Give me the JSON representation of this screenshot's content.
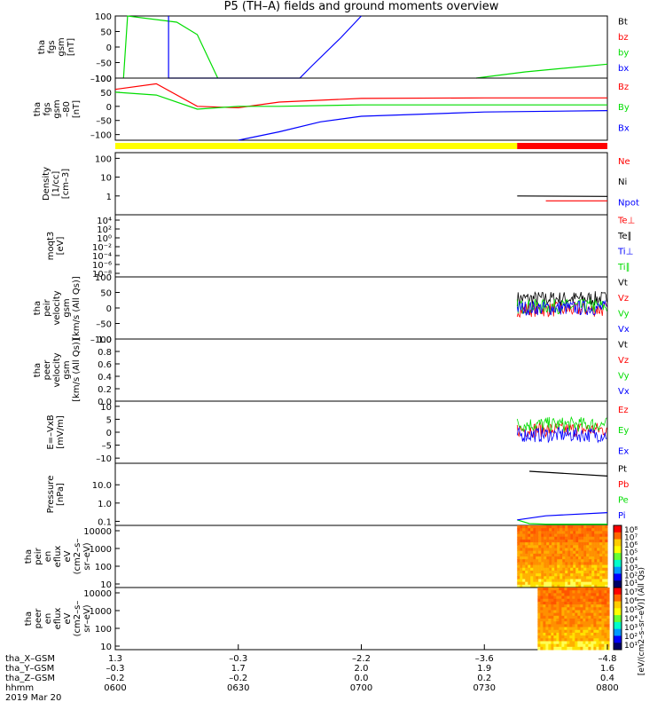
{
  "title": "P5 (TH–A) fields and ground moments overview",
  "date_label": "2019 Mar 20",
  "footer": {
    "row_labels": [
      "tha_X–GSM",
      "tha_Y–GSM",
      "tha_Z–GSM",
      "hhmm"
    ],
    "columns": [
      [
        "1.3",
        "–0.3",
        "–0.2",
        "0600"
      ],
      [
        "–0.3",
        "1.7",
        "–0.2",
        "0630"
      ],
      [
        "–2.2",
        "2.0",
        "0.0",
        "0700"
      ],
      [
        "–3.6",
        "1.9",
        "0.2",
        "0730"
      ],
      [
        "–4.8",
        "1.6",
        "0.4",
        "0800"
      ]
    ]
  },
  "colors": {
    "black": "#000000",
    "red": "#ff0000",
    "green": "#00dd00",
    "blue": "#0000ff",
    "yellow": "#ffff00",
    "barred": "#ff0000"
  },
  "colorbar_label": "[eV/(cm2–s–sr–eV)] (All Qs)",
  "chart_data": [
    {
      "type": "line",
      "id": "fgs",
      "ylabel_lines": [
        "tha",
        "fgs",
        "gsm",
        "[nT]"
      ],
      "ylim": [
        -100,
        100
      ],
      "yticks": [
        "100",
        "50",
        "0",
        "–50",
        "–100"
      ],
      "series": [
        {
          "name": "Bt",
          "color": "#000000"
        },
        {
          "name": "bz",
          "color": "#ff0000"
        },
        {
          "name": "by",
          "color": "#00dd00",
          "x_hhmm": [
            "0602",
            "0603",
            "0615",
            "0620",
            "0625",
            "0700",
            "0728",
            "0740",
            "0800"
          ],
          "values": [
            -100,
            100,
            80,
            40,
            -100,
            null,
            -100,
            -80,
            -55
          ]
        },
        {
          "name": "bx",
          "color": "#0000ff",
          "x_hhmm": [
            "0613",
            "0613",
            "0645",
            "0648",
            "0655",
            "0700"
          ],
          "values": [
            100,
            -100,
            -100,
            -60,
            30,
            100
          ]
        }
      ]
    },
    {
      "type": "line",
      "id": "fgs_dsl",
      "ylabel_lines": [
        "tha",
        "fgs",
        "gsm",
        "–80",
        "[nT]"
      ],
      "ylim": [
        -120,
        100
      ],
      "yticks": [
        "100",
        "50",
        "0",
        "–50",
        "–100"
      ],
      "series": [
        {
          "name": "Bz",
          "color": "#ff0000",
          "x_hhmm": [
            "0600",
            "0610",
            "0620",
            "0630",
            "0640",
            "0700",
            "0730",
            "0800"
          ],
          "values": [
            60,
            80,
            0,
            -5,
            15,
            28,
            30,
            30
          ]
        },
        {
          "name": "By",
          "color": "#00dd00",
          "x_hhmm": [
            "0600",
            "0610",
            "0620",
            "0630",
            "0640",
            "0700",
            "0730",
            "0800"
          ],
          "values": [
            50,
            40,
            -10,
            0,
            0,
            5,
            5,
            5
          ]
        },
        {
          "name": "Bx",
          "color": "#0000ff",
          "x_hhmm": [
            "0630",
            "0640",
            "0650",
            "0700",
            "0730",
            "0800"
          ],
          "values": [
            -120,
            -90,
            -55,
            -35,
            -20,
            -15
          ]
        }
      ],
      "status_bar": [
        {
          "from": "0600",
          "to": "0738",
          "color": "#ffff00"
        },
        {
          "from": "0738",
          "to": "0800",
          "color": "#ff0000"
        }
      ]
    },
    {
      "type": "line",
      "id": "density",
      "ylabel_lines": [
        "Density",
        "[1/cc]",
        "[cm–3]"
      ],
      "scale": "log",
      "ylim": [
        0.1,
        200
      ],
      "yticks": [
        "100",
        "10",
        "1"
      ],
      "series": [
        {
          "name": "Ne",
          "color": "#ff0000",
          "x_hhmm": [
            "0745",
            "0800"
          ],
          "values": [
            0.55,
            0.55
          ]
        },
        {
          "name": "Ni",
          "color": "#000000",
          "x_hhmm": [
            "0738",
            "0800"
          ],
          "values": [
            1.0,
            0.95
          ]
        },
        {
          "name": "Npot",
          "color": "#0000ff"
        }
      ]
    },
    {
      "type": "line",
      "id": "temperature",
      "ylabel_lines": [
        "moqt3",
        "[eV]"
      ],
      "scale": "log",
      "yticks": [
        "10⁴",
        "10²",
        "10⁰",
        "10⁻²",
        "10⁻⁴",
        "10⁻⁶",
        "10⁻⁸"
      ],
      "series": [
        {
          "name": "Te⊥",
          "color": "#ff0000"
        },
        {
          "name": "Te∥",
          "color": "#000000"
        },
        {
          "name": "Ti⊥",
          "color": "#0000ff"
        },
        {
          "name": "Ti∥",
          "color": "#00dd00"
        }
      ]
    },
    {
      "type": "line",
      "id": "peir_velocity",
      "ylabel_lines": [
        "tha",
        "peir",
        "velocity",
        "gsm",
        "[km/s (All Qs)]"
      ],
      "ylim": [
        -100,
        100
      ],
      "yticks": [
        "100",
        "50",
        "0",
        "–50",
        "–100"
      ],
      "series": [
        {
          "name": "Vt",
          "color": "#000000",
          "from": "0738",
          "to": "0800",
          "values": [
            30
          ]
        },
        {
          "name": "Vz",
          "color": "#ff0000",
          "from": "0738",
          "to": "0800",
          "values": [
            -5
          ]
        },
        {
          "name": "Vy",
          "color": "#00dd00",
          "from": "0738",
          "to": "0800",
          "values": [
            5
          ]
        },
        {
          "name": "Vx",
          "color": "#0000ff",
          "from": "0738",
          "to": "0800",
          "values": [
            0
          ]
        }
      ]
    },
    {
      "type": "line",
      "id": "peer_velocity",
      "ylabel_lines": [
        "tha",
        "peer",
        "velocity",
        "gsm",
        "[km/s (All Qs)]"
      ],
      "ylim": [
        0,
        1
      ],
      "yticks": [
        "1.0",
        "0.8",
        "0.6",
        "0.4",
        "0.2",
        "0.0"
      ],
      "series": [
        {
          "name": "Vt",
          "color": "#000000"
        },
        {
          "name": "Vz",
          "color": "#ff0000"
        },
        {
          "name": "Vy",
          "color": "#00dd00"
        },
        {
          "name": "Vx",
          "color": "#0000ff"
        }
      ]
    },
    {
      "type": "line",
      "id": "efield",
      "ylabel_lines": [
        "E=–VxB",
        "[mV/m]"
      ],
      "ylim": [
        -12,
        12
      ],
      "yticks": [
        "10",
        "5",
        "0",
        "–5",
        "–10"
      ],
      "series": [
        {
          "name": "Ez",
          "color": "#ff0000",
          "from": "0738",
          "to": "0800",
          "values": [
            1
          ]
        },
        {
          "name": "Ey",
          "color": "#00dd00",
          "from": "0738",
          "to": "0800",
          "values": [
            3
          ]
        },
        {
          "name": "Ex",
          "color": "#0000ff",
          "from": "0738",
          "to": "0800",
          "values": [
            -1
          ]
        }
      ]
    },
    {
      "type": "line",
      "id": "pressure",
      "ylabel_lines": [
        "Pressure",
        "[nPa]"
      ],
      "scale": "log",
      "ylim": [
        0.06,
        150
      ],
      "yticks": [
        "10.0",
        "1.0",
        "0.1"
      ],
      "series": [
        {
          "name": "Pt",
          "color": "#000000",
          "x_hhmm": [
            "0741",
            "0800"
          ],
          "values": [
            55,
            30
          ]
        },
        {
          "name": "Pb",
          "color": "#ff0000"
        },
        {
          "name": "Pe",
          "color": "#00dd00",
          "x_hhmm": [
            "0738",
            "0741",
            "0745",
            "0800"
          ],
          "values": [
            0.12,
            0.075,
            0.07,
            0.07
          ]
        },
        {
          "name": "Pi",
          "color": "#0000ff",
          "x_hhmm": [
            "0738",
            "0745",
            "0800"
          ],
          "values": [
            0.12,
            0.2,
            0.3
          ]
        }
      ]
    },
    {
      "type": "heatmap",
      "id": "peir_spec",
      "ylabel_lines": [
        "tha",
        "peir",
        "en",
        "eflux",
        "eV",
        "(cm2–s–",
        "sr–eV)"
      ],
      "scale": "log",
      "yticks": [
        "10000",
        "1000",
        "100",
        "10"
      ],
      "from": "0738",
      "to": "0800",
      "colorbar_ticks": [
        "10⁸",
        "10⁷",
        "10⁶",
        "10⁵",
        "10⁴",
        "10³",
        "10²",
        "10¹"
      ]
    },
    {
      "type": "heatmap",
      "id": "peer_spec",
      "ylabel_lines": [
        "tha",
        "peer",
        "en",
        "eflux",
        "eV",
        "(cm2–s–",
        "sr–eV)"
      ],
      "scale": "log",
      "yticks": [
        "10000",
        "1000",
        "100",
        "10"
      ],
      "from": "0743",
      "to": "0800",
      "colorbar_ticks": [
        "10⁷",
        "10⁶",
        "10⁵",
        "10⁴",
        "10³",
        "10²",
        "10¹"
      ]
    }
  ]
}
